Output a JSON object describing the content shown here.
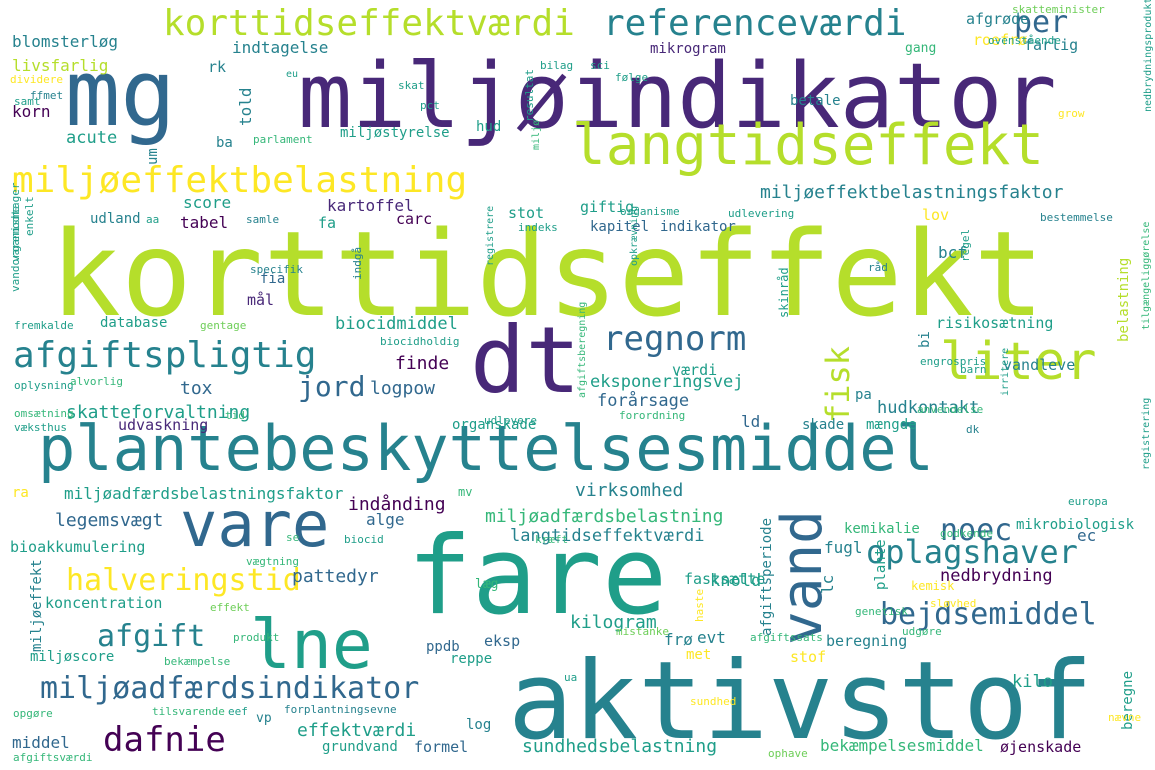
{
  "palette": {
    "dark_purple": "#440154",
    "purple": "#482878",
    "indigo": "#3e4989",
    "blue": "#31688e",
    "teal_blue": "#26828e",
    "teal": "#1f9e89",
    "green": "#35b779",
    "light_green": "#6ece58",
    "lime": "#b5de2b",
    "yellow": "#fde725"
  },
  "words": [
    "korttidseffekt",
    "aktivstof",
    "miljøindikator",
    "fare",
    "plantebeskyttelsesmiddel",
    "dt",
    "mg",
    "vare",
    "langtidseffekt",
    "lne",
    "vand",
    "liter",
    "miljøeffektbelastning",
    "korttidseffektværdi",
    "referenceværdi",
    "afgiftspligtig",
    "miljøadfærdsindikator",
    "halveringstid",
    "regnorm",
    "oplagshaver",
    "dafnie",
    "bejdsemiddel",
    "afgift",
    "noec",
    "jord",
    "fisk",
    "per",
    "skatteforvaltning",
    "tox",
    "logpow",
    "virksomhed",
    "miljøeffektbelastningsfaktor",
    "miljøadfærdsbelastning",
    "miljøadfærdsbelastningsfaktor",
    "legemsvægt",
    "bioakkumulering",
    "indånding",
    "kilogram",
    "pattedyr",
    "langtidseffektværdi",
    "sundhedsbelastning",
    "bekæmpelsesmiddel",
    "effektværdi",
    "knold",
    "nedbrydning",
    "hudkontakt",
    "eksponeringsvej",
    "forårsage",
    "biocidmiddel",
    "finde",
    "kartoffel",
    "blomsterløg",
    "livsfarlig",
    "indtagelse",
    "afgrøde",
    "roefrø",
    "farlig",
    "korn",
    "acute",
    "score",
    "tabel",
    "udland",
    "database",
    "koncentration",
    "middel",
    "grundvand",
    "formel",
    "øjenskade",
    "kilo",
    "beregne",
    "ec",
    "lc",
    "alge",
    "fugl",
    "mikrobiologisk",
    "kemikalie",
    "stof",
    "beregning",
    "frø",
    "evt",
    "eksp",
    "ppdb",
    "reppe",
    "udvaskning",
    "organskade",
    "skade",
    "mængde",
    "vandleve",
    "risikosætning",
    "belastning",
    "lov",
    "bcf",
    "bi",
    "værdi",
    "pa",
    "mål",
    "fia",
    "fa",
    "carc",
    "stot",
    "giftig",
    "kapitel",
    "indikator",
    "miljøstyrelse",
    "told",
    "rk",
    "hud",
    "mikrogram",
    "gang",
    "ba",
    "um",
    "ld",
    "log",
    "met",
    "vp",
    "fastsætte",
    "læg",
    "mv",
    "ra",
    "miljøeffekt",
    "miljøscore",
    "plante",
    "afgiftsperiode",
    "skinråd",
    "afgiftsberegning",
    "registrere",
    "nedbrydningsprodukt",
    "tilgængeliggørelse",
    "registrering",
    "irritere",
    "europa",
    "godkende",
    "kemisk",
    "sløvhed",
    "genetisk",
    "kræft",
    "biocid",
    "vægtning",
    "se",
    "effekt",
    "produkt",
    "bekæmpelse",
    "mistanke",
    "afgiftssats",
    "udgøre",
    "haste",
    "sundhed",
    "forplantningsevne",
    "tilsvarende",
    "opgøre",
    "eef",
    "afgiftsværdi",
    "ophave",
    "nævne",
    "ua",
    "dk",
    "udlevere",
    "forordning",
    "anvendelse",
    "tid",
    "omsætning",
    "væksthus",
    "oplysning",
    "alvorlig",
    "fremkalde",
    "gentage",
    "vandorganisme",
    "indgå",
    "specifik",
    "biocidholdig",
    "engrospris",
    "barn",
    "regel",
    "udlevering",
    "bestemmelse",
    "indeks",
    "organisme",
    "samle",
    "aa",
    "enkelt",
    "varemodtager",
    "skatteminister",
    "ovenstående",
    "grow",
    "eu",
    "dividere",
    "ffmet",
    "samt",
    "parlament",
    "skat",
    "pct",
    "bilag",
    "sci",
    "følge",
    "resultat",
    "betale",
    "opkrævning",
    "råd",
    "miljø"
  ]
}
